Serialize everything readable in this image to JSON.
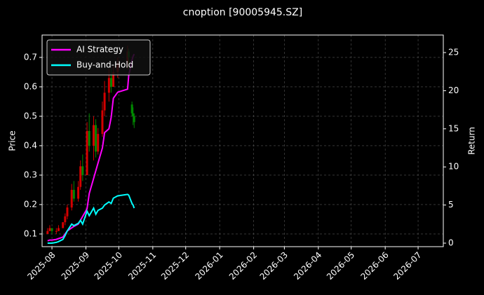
{
  "chart_data": {
    "type": "candlestick",
    "title": "cnoption [90005945.SZ]",
    "ylabel": "Price",
    "y2label": "Return",
    "x": [
      "2025-07-28",
      "2025-07-30",
      "2025-08-01",
      "2025-08-05",
      "2025-08-07",
      "2025-08-11",
      "2025-08-13",
      "2025-08-15",
      "2025-08-19",
      "2025-08-21",
      "2025-08-25",
      "2025-08-27",
      "2025-08-29",
      "2025-09-02",
      "2025-09-04",
      "2025-09-08",
      "2025-09-10",
      "2025-09-12",
      "2025-09-16",
      "2025-09-18",
      "2025-09-22",
      "2025-09-24",
      "2025-09-26",
      "2025-09-30",
      "2025-10-09",
      "2025-10-10",
      "2025-10-13",
      "2025-10-14",
      "2025-10-15"
    ],
    "open": [
      0.1,
      0.11,
      0.12,
      0.11,
      0.11,
      0.12,
      0.14,
      0.16,
      0.19,
      0.25,
      0.22,
      0.26,
      0.33,
      0.3,
      0.45,
      0.4,
      0.47,
      0.38,
      0.44,
      0.52,
      0.58,
      0.63,
      0.6,
      0.65,
      0.68,
      0.72,
      0.54,
      0.51,
      0.5
    ],
    "high": [
      0.12,
      0.13,
      0.12,
      0.12,
      0.13,
      0.14,
      0.17,
      0.2,
      0.27,
      0.28,
      0.28,
      0.35,
      0.37,
      0.48,
      0.51,
      0.5,
      0.49,
      0.46,
      0.55,
      0.62,
      0.66,
      0.66,
      0.67,
      0.7,
      0.74,
      0.73,
      0.55,
      0.53,
      0.51
    ],
    "low": [
      0.1,
      0.11,
      0.1,
      0.1,
      0.11,
      0.12,
      0.13,
      0.15,
      0.18,
      0.21,
      0.21,
      0.25,
      0.28,
      0.3,
      0.38,
      0.35,
      0.36,
      0.37,
      0.43,
      0.5,
      0.55,
      0.58,
      0.6,
      0.63,
      0.66,
      0.66,
      0.5,
      0.47,
      0.46
    ],
    "close": [
      0.11,
      0.12,
      0.11,
      0.11,
      0.12,
      0.14,
      0.16,
      0.19,
      0.25,
      0.22,
      0.26,
      0.33,
      0.3,
      0.45,
      0.4,
      0.47,
      0.38,
      0.44,
      0.52,
      0.58,
      0.63,
      0.6,
      0.65,
      0.68,
      0.72,
      0.7,
      0.51,
      0.5,
      0.48
    ],
    "up_color": "#d40000",
    "down_color": "#008800",
    "series": [
      {
        "name": "AI Strategy",
        "color": "#ff00ff",
        "axis": "y2",
        "values": [
          0.3,
          0.4,
          0.4,
          0.5,
          0.6,
          0.8,
          1.2,
          1.6,
          2.0,
          2.2,
          2.5,
          3.0,
          3.5,
          4.5,
          6.5,
          8.5,
          9.5,
          10.5,
          12.5,
          14.5,
          15.0,
          16.5,
          19.0,
          19.8,
          20.2,
          22.0,
          24.0,
          24.5,
          24.8
        ]
      },
      {
        "name": "Buy-and-Hold",
        "color": "#00ffff",
        "axis": "y2",
        "values": [
          0,
          0,
          0,
          0.1,
          0.2,
          0.5,
          1.0,
          1.6,
          2.5,
          2.3,
          2.6,
          3.0,
          2.5,
          4.2,
          3.6,
          4.6,
          3.8,
          4.3,
          4.6,
          5.0,
          5.4,
          5.2,
          5.9,
          6.2,
          6.4,
          6.3,
          5.2,
          5.0,
          4.6
        ]
      }
    ],
    "xlim": [
      "2025-07-23",
      "2026-07-24"
    ],
    "xticks": [
      {
        "value": "2025-08-01",
        "label": "2025-08"
      },
      {
        "value": "2025-09-01",
        "label": "2025-09"
      },
      {
        "value": "2025-10-01",
        "label": "2025-10"
      },
      {
        "value": "2025-11-01",
        "label": "2025-11"
      },
      {
        "value": "2025-12-01",
        "label": "2025-12"
      },
      {
        "value": "2026-01-01",
        "label": "2026-01"
      },
      {
        "value": "2026-02-01",
        "label": "2026-02"
      },
      {
        "value": "2026-03-01",
        "label": "2026-03"
      },
      {
        "value": "2026-04-01",
        "label": "2026-04"
      },
      {
        "value": "2026-05-01",
        "label": "2026-05"
      },
      {
        "value": "2026-06-01",
        "label": "2026-06"
      },
      {
        "value": "2026-07-01",
        "label": "2026-07"
      }
    ],
    "ylim": [
      0.057,
      0.776
    ],
    "yticks": [
      0.1,
      0.2,
      0.3,
      0.4,
      0.5,
      0.6,
      0.7
    ],
    "y2lim": [
      -0.46,
      27.3
    ],
    "y2ticks": [
      0,
      5,
      10,
      15,
      20,
      25
    ],
    "grid": true,
    "legend": "upper left"
  }
}
